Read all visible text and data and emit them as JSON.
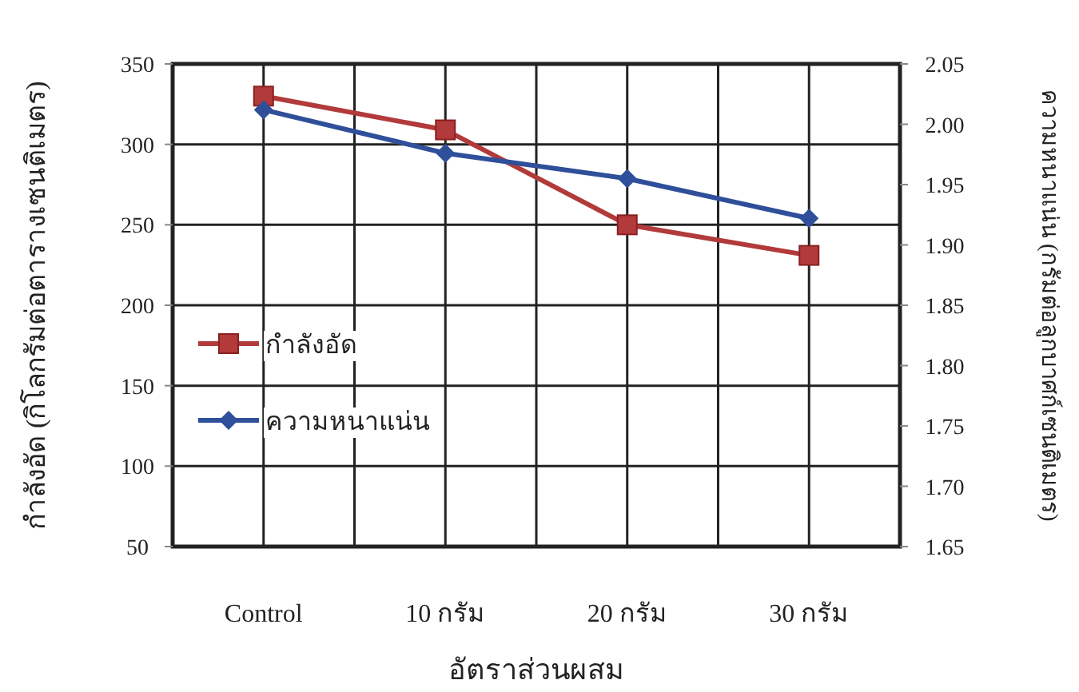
{
  "chart_data": {
    "type": "line",
    "xlabel": "อัตราส่วนผสม",
    "ylabel": "กำลังอัด (กิโลกรัมต่อตารางเซนติเมตร)",
    "y2label": "ความหนาแน่น (กรัมต่อลูกบาศก์เซนติเมตร)",
    "categories": [
      "Control",
      "10 กรัม",
      "20 กรัม",
      "30 กรัม"
    ],
    "series": [
      {
        "name": "กำลังอัด",
        "color": "#b23a3a",
        "marker": "square",
        "values": [
          330,
          309,
          250,
          231
        ]
      },
      {
        "name": "ความหนาแน่น",
        "color": "#2f4f9a",
        "marker": "diamond",
        "axis": "y2",
        "values": [
          2.012,
          1.976,
          1.955,
          1.922
        ]
      }
    ],
    "ylim": [
      50,
      350
    ],
    "yticks": [
      50,
      100,
      150,
      200,
      250,
      300,
      350
    ],
    "y2lim": [
      1.65,
      2.05
    ],
    "y2ticks": [
      {
        "value": 1.65,
        "label": "1.65"
      },
      {
        "value": 1.7,
        "label": "1.70"
      },
      {
        "value": 1.75,
        "label": "1.75"
      },
      {
        "value": 1.8,
        "label": "1.80"
      },
      {
        "value": 1.85,
        "label": "1.85"
      },
      {
        "value": 1.9,
        "label": "1.90"
      },
      {
        "value": 1.95,
        "label": "1.95"
      },
      {
        "value": 2.0,
        "label": "2.00"
      },
      {
        "value": 2.05,
        "label": "2.05"
      }
    ],
    "grid": true,
    "legend": "left"
  }
}
